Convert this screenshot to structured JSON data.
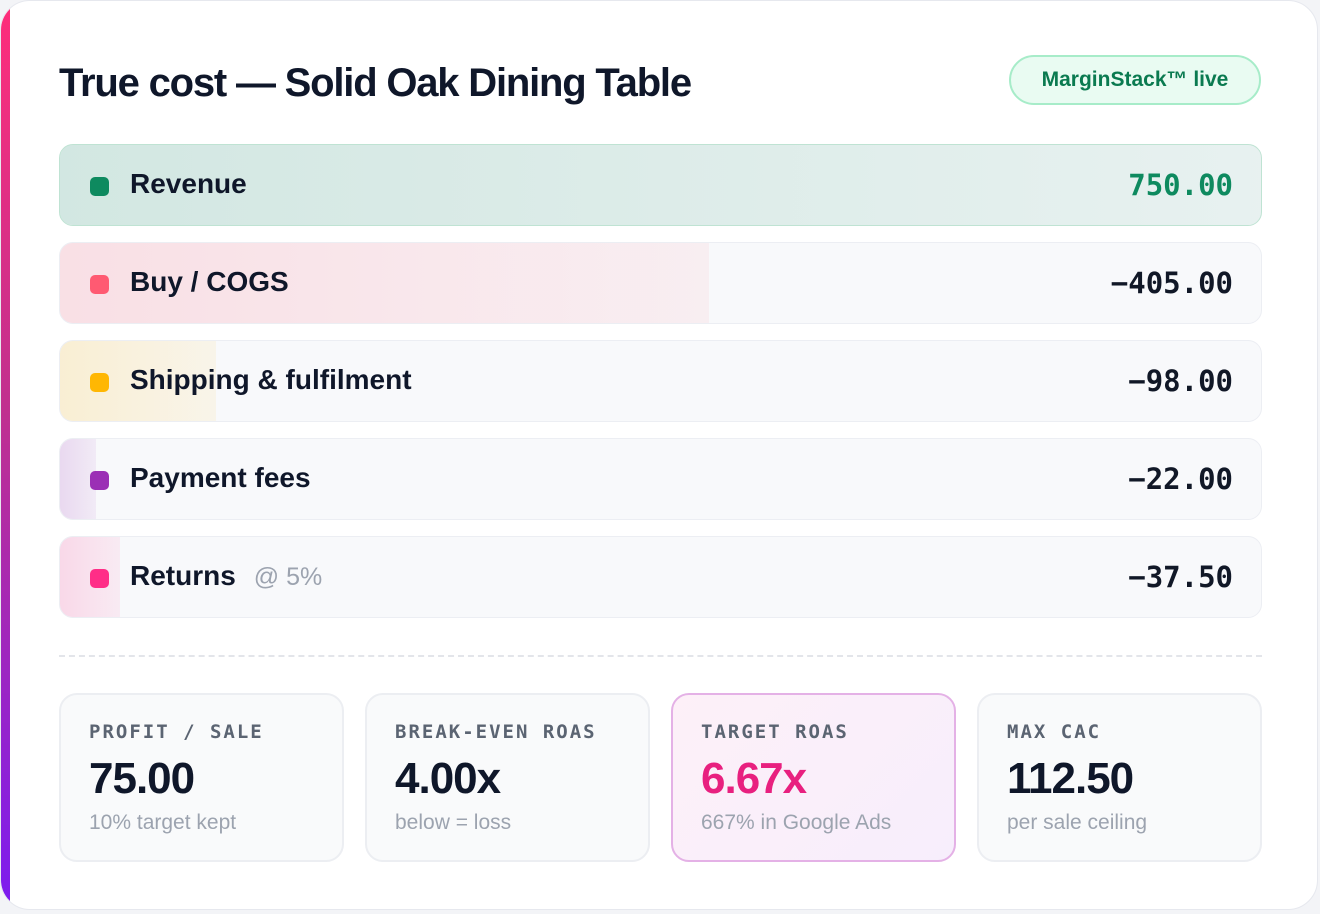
{
  "title": "True cost — Solid Oak Dining Table",
  "badge": "MarginStack™ live",
  "colors": {
    "revenue": "#0e8a5f",
    "cogs": "#ff5a72",
    "shipping": "#ffb703",
    "payment": "#9b2fb5",
    "returns": "#ff2d87",
    "target_roas": "#e8207f"
  },
  "rows": [
    {
      "label": "Revenue",
      "note": "",
      "value": "750.00",
      "share": 1.0
    },
    {
      "label": "Buy / COGS",
      "note": "",
      "value": "−405.00",
      "share": 0.54
    },
    {
      "label": "Shipping & fulfilment",
      "note": "",
      "value": "−98.00",
      "share": 0.13
    },
    {
      "label": "Payment fees",
      "note": "",
      "value": "−22.00",
      "share": 0.03
    },
    {
      "label": "Returns",
      "note": "@ 5%",
      "value": "−37.50",
      "share": 0.05
    }
  ],
  "stats": [
    {
      "label": "PROFIT / SALE",
      "value": "75.00",
      "sub": "10% target kept"
    },
    {
      "label": "BREAK-EVEN ROAS",
      "value": "4.00x",
      "sub": "below = loss"
    },
    {
      "label": "TARGET ROAS",
      "value": "6.67x",
      "sub": "667% in Google Ads"
    },
    {
      "label": "MAX CAC",
      "value": "112.50",
      "sub": "per sale ceiling"
    }
  ]
}
